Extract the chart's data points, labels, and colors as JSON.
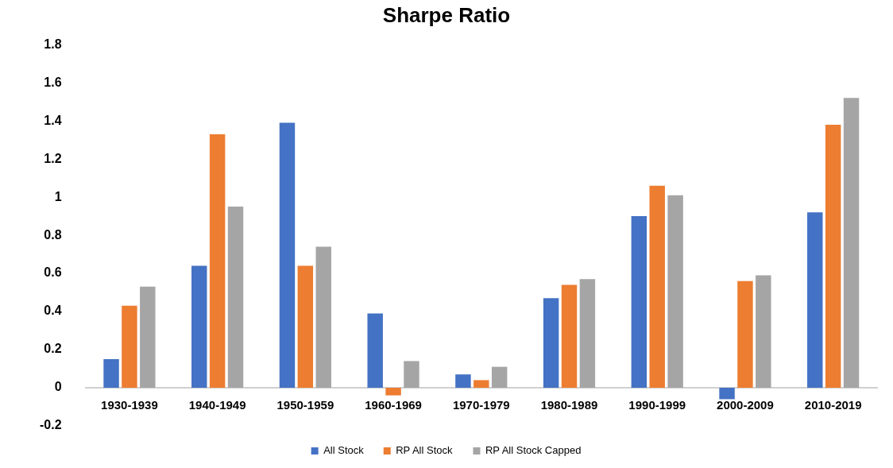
{
  "chart_data": {
    "type": "bar",
    "title": "Sharpe Ratio",
    "categories": [
      "1930-1939",
      "1940-1949",
      "1950-1959",
      "1960-1969",
      "1970-1979",
      "1980-1989",
      "1990-1999",
      "2000-2009",
      "2010-2019"
    ],
    "series": [
      {
        "name": "All Stock",
        "color": "#4472c4",
        "values": [
          0.15,
          0.64,
          1.39,
          0.39,
          0.07,
          0.47,
          0.9,
          -0.06,
          0.92
        ]
      },
      {
        "name": "RP All Stock",
        "color": "#ed7d31",
        "values": [
          0.43,
          1.33,
          0.64,
          -0.04,
          0.04,
          0.54,
          1.06,
          0.56,
          1.38
        ]
      },
      {
        "name": "RP All Stock Capped",
        "color": "#a5a5a5",
        "values": [
          0.53,
          0.95,
          0.74,
          0.14,
          0.11,
          0.57,
          1.01,
          0.59,
          1.52
        ]
      }
    ],
    "ylim": [
      -0.2,
      1.8
    ],
    "yticks": [
      -0.2,
      0,
      0.2,
      0.4,
      0.6,
      0.8,
      1,
      1.2,
      1.4,
      1.6,
      1.8
    ],
    "grid": false,
    "legend": "bottom"
  }
}
